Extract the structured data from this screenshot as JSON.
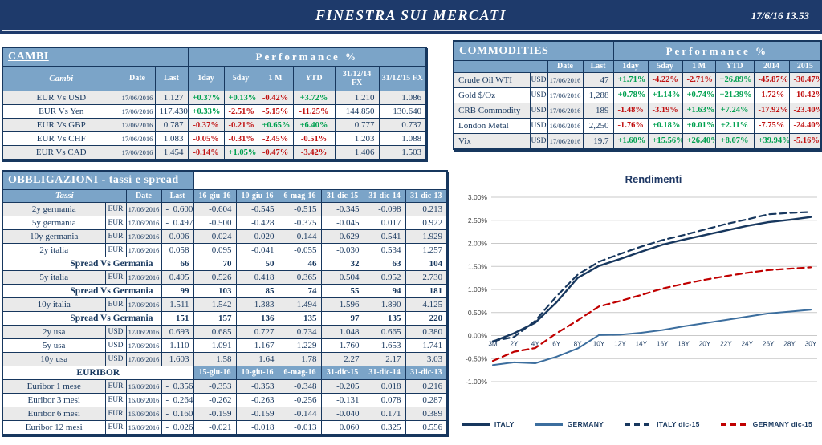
{
  "header": {
    "title": "FINESTRA SUI MERCATI",
    "datetime": "17/6/16 13.53"
  },
  "colors": {
    "navy": "#17375E",
    "header_bar": "#1E3A6B",
    "panel_blue": "#7BA4C8",
    "positive": "#00A050",
    "negative": "#C01010",
    "row_shade": "#EAEAEA",
    "grid": "#C9C9C9",
    "italy_line": "#17375E",
    "germany_line": "#3C6E9E",
    "germany_dec_line": "#C00000"
  },
  "cambi": {
    "title": "CAMBI",
    "perf_header": "Performance %",
    "columns": [
      "Cambi",
      "Date",
      "Last",
      "1day",
      "5day",
      "1 M",
      "YTD",
      "31/12/14 FX",
      "31/12/15  FX"
    ],
    "rows": [
      {
        "name": "EUR Vs USD",
        "date": "17/06/2016",
        "last": "1.127",
        "perf": [
          "+0.37%",
          "+0.13%",
          "-0.42%",
          "+3.72%"
        ],
        "fx14": "1.210",
        "fx15": "1.086"
      },
      {
        "name": "EUR Vs Yen",
        "date": "17/06/2016",
        "last": "117.430",
        "perf": [
          "+0.33%",
          "-2.51%",
          "-5.15%",
          "-11.25%"
        ],
        "fx14": "144.850",
        "fx15": "130.640"
      },
      {
        "name": "EUR Vs GBP",
        "date": "17/06/2016",
        "last": "0.787",
        "perf": [
          "-0.37%",
          "-0.21%",
          "+0.65%",
          "+6.40%"
        ],
        "fx14": "0.777",
        "fx15": "0.737"
      },
      {
        "name": "EUR Vs CHF",
        "date": "17/06/2016",
        "last": "1.083",
        "perf": [
          "-0.05%",
          "-0.31%",
          "-2.45%",
          "-0.51%"
        ],
        "fx14": "1.203",
        "fx15": "1.088"
      },
      {
        "name": "EUR Vs CAD",
        "date": "17/06/2016",
        "last": "1.454",
        "perf": [
          "-0.14%",
          "+1.05%",
          "-0.47%",
          "-3.42%"
        ],
        "fx14": "1.406",
        "fx15": "1.503"
      }
    ]
  },
  "commodities": {
    "title": "COMMODITIES",
    "perf_header": "Performance %",
    "columns": [
      "",
      "Date",
      "Last",
      "1day",
      "5day",
      "1 M",
      "YTD",
      "2014",
      "2015"
    ],
    "rows": [
      {
        "name": "Crude Oil WTI",
        "ccy": "USD",
        "date": "17/06/2016",
        "last": "47",
        "perf": [
          "+1.71%",
          "-4.22%",
          "-2.71%",
          "+26.89%",
          "-45.87%",
          "-30.47%"
        ]
      },
      {
        "name": "Gold $/Oz",
        "ccy": "USD",
        "date": "17/06/2016",
        "last": "1,288",
        "perf": [
          "+0.78%",
          "+1.14%",
          "+0.74%",
          "+21.39%",
          "-1.72%",
          "-10.42%"
        ]
      },
      {
        "name": "CRB Commodity",
        "ccy": "USD",
        "date": "17/06/2016",
        "last": "189",
        "perf": [
          "-1.48%",
          "-3.19%",
          "+1.63%",
          "+7.24%",
          "-17.92%",
          "-23.40%"
        ]
      },
      {
        "name": "London Metal",
        "ccy": "USD",
        "date": "16/06/2016",
        "last": "2,250",
        "perf": [
          "-1.76%",
          "+0.18%",
          "+0.01%",
          "+2.11%",
          "-7.75%",
          "-24.40%"
        ]
      },
      {
        "name": "Vix",
        "ccy": "USD",
        "date": "17/06/2016",
        "last": "19.7",
        "perf": [
          "+1.60%",
          "+15.56%",
          "+26.40%",
          "+8.07%",
          "+39.94%",
          "-5.16%"
        ]
      }
    ]
  },
  "bonds": {
    "title": "OBBLIGAZIONI - tassi e spread",
    "columns": [
      "Tassi",
      "Date",
      "Last",
      "16-giu-16",
      "10-giu-16",
      "6-mag-16",
      "31-dic-15",
      "31-dic-14",
      "31-dic-13"
    ],
    "rows": [
      {
        "type": "data",
        "name": "2y germania",
        "ccy": "EUR",
        "date": "17/06/2016",
        "last": "-  0.600",
        "values": [
          "-0.604",
          "-0.545",
          "-0.515",
          "-0.345",
          "-0.098",
          "0.213"
        ]
      },
      {
        "type": "data",
        "name": "5y germania",
        "ccy": "EUR",
        "date": "17/06/2016",
        "last": "-  0.497",
        "values": [
          "-0.500",
          "-0.428",
          "-0.375",
          "-0.045",
          "0.017",
          "0.922"
        ]
      },
      {
        "type": "data",
        "name": "10y germania",
        "ccy": "EUR",
        "date": "17/06/2016",
        "last": "0.006",
        "values": [
          "-0.024",
          "0.020",
          "0.144",
          "0.629",
          "0.541",
          "1.929"
        ]
      },
      {
        "type": "data",
        "name": "2y italia",
        "ccy": "EUR",
        "date": "17/06/2016",
        "last": "0.058",
        "values": [
          "0.095",
          "-0.041",
          "-0.055",
          "-0.030",
          "0.534",
          "1.257"
        ]
      },
      {
        "type": "spread",
        "label": "Spread Vs Germania",
        "last": "66",
        "values": [
          "70",
          "50",
          "46",
          "32",
          "63",
          "104"
        ]
      },
      {
        "type": "data",
        "name": "5y italia",
        "ccy": "EUR",
        "date": "17/06/2016",
        "last": "0.495",
        "values": [
          "0.526",
          "0.418",
          "0.365",
          "0.504",
          "0.952",
          "2.730"
        ]
      },
      {
        "type": "spread",
        "label": "Spread Vs Germania",
        "last": "99",
        "values": [
          "103",
          "85",
          "74",
          "55",
          "94",
          "181"
        ]
      },
      {
        "type": "data",
        "name": "10y italia",
        "ccy": "EUR",
        "date": "17/06/2016",
        "last": "1.511",
        "values": [
          "1.542",
          "1.383",
          "1.494",
          "1.596",
          "1.890",
          "4.125"
        ]
      },
      {
        "type": "spread",
        "label": "Spread Vs Germania",
        "last": "151",
        "values": [
          "157",
          "136",
          "135",
          "97",
          "135",
          "220"
        ]
      },
      {
        "type": "data",
        "name": "2y usa",
        "ccy": "USD",
        "date": "17/06/2016",
        "last": "0.693",
        "values": [
          "0.685",
          "0.727",
          "0.734",
          "1.048",
          "0.665",
          "0.380"
        ]
      },
      {
        "type": "data",
        "name": "5y usa",
        "ccy": "USD",
        "date": "17/06/2016",
        "last": "1.110",
        "values": [
          "1.091",
          "1.167",
          "1.229",
          "1.760",
          "1.653",
          "1.741"
        ]
      },
      {
        "type": "data",
        "name": "10y usa",
        "ccy": "USD",
        "date": "17/06/2016",
        "last": "1.603",
        "values": [
          "1.58",
          "1.64",
          "1.78",
          "2.27",
          "2.17",
          "3.03"
        ]
      },
      {
        "type": "subheader",
        "label": "EURIBOR",
        "columns": [
          "15-giu-16",
          "10-giu-16",
          "6-mag-16",
          "31-dic-15",
          "31-dic-14",
          "31-dic-13"
        ]
      },
      {
        "type": "data",
        "name": "Euribor 1 mese",
        "ccy": "EUR",
        "date": "16/06/2016",
        "last": "-  0.356",
        "values": [
          "-0.353",
          "-0.353",
          "-0.348",
          "-0.205",
          "0.018",
          "0.216"
        ]
      },
      {
        "type": "data",
        "name": "Euribor 3 mesi",
        "ccy": "EUR",
        "date": "16/06/2016",
        "last": "-  0.264",
        "values": [
          "-0.262",
          "-0.263",
          "-0.256",
          "-0.131",
          "0.078",
          "0.287"
        ]
      },
      {
        "type": "data",
        "name": "Euribor 6 mesi",
        "ccy": "EUR",
        "date": "16/06/2016",
        "last": "-  0.160",
        "values": [
          "-0.159",
          "-0.159",
          "-0.144",
          "-0.040",
          "0.171",
          "0.389"
        ]
      },
      {
        "type": "data",
        "name": "Euribor 12 mesi",
        "ccy": "EUR",
        "date": "16/06/2016",
        "last": "-  0.026",
        "values": [
          "-0.021",
          "-0.018",
          "-0.013",
          "0.060",
          "0.325",
          "0.556"
        ]
      }
    ]
  },
  "chart_data": {
    "type": "line",
    "title": "Rendimenti",
    "x": [
      "3M",
      "2Y",
      "4Y",
      "6Y",
      "8Y",
      "10Y",
      "12Y",
      "14Y",
      "16Y",
      "18Y",
      "20Y",
      "22Y",
      "24Y",
      "26Y",
      "28Y",
      "30Y"
    ],
    "ylim": [
      -1.0,
      3.0
    ],
    "ytick_labels": [
      "3.00%",
      "2.50%",
      "2.00%",
      "1.50%",
      "1.00%",
      "0.50%",
      "0.00%",
      "-0.50%",
      "-1.00%"
    ],
    "ytick_values": [
      3.0,
      2.5,
      2.0,
      1.5,
      1.0,
      0.5,
      0.0,
      -0.5,
      -1.0
    ],
    "grid": true,
    "legend_position": "bottom",
    "series": [
      {
        "name": "ITALY",
        "color": "#17375E",
        "dash": false,
        "width": 2.4,
        "values": [
          -0.13,
          0.05,
          0.28,
          0.72,
          1.25,
          1.51,
          1.66,
          1.82,
          1.97,
          2.08,
          2.18,
          2.28,
          2.38,
          2.46,
          2.51,
          2.57
        ]
      },
      {
        "name": "GERMANY",
        "color": "#3C6E9E",
        "dash": false,
        "width": 2.0,
        "values": [
          -0.64,
          -0.58,
          -0.6,
          -0.46,
          -0.28,
          0.01,
          0.02,
          0.06,
          0.12,
          0.2,
          0.27,
          0.34,
          0.41,
          0.48,
          0.52,
          0.56
        ]
      },
      {
        "name": "ITALY dic-15",
        "color": "#17375E",
        "dash": true,
        "width": 2.2,
        "values": [
          -0.12,
          -0.03,
          0.32,
          0.85,
          1.32,
          1.6,
          1.77,
          1.93,
          2.07,
          2.18,
          2.3,
          2.42,
          2.52,
          2.63,
          2.66,
          2.68
        ]
      },
      {
        "name": "GERMANY dic-15",
        "color": "#C00000",
        "dash": true,
        "width": 2.2,
        "values": [
          -0.55,
          -0.35,
          -0.27,
          0.05,
          0.33,
          0.63,
          0.75,
          0.88,
          1.02,
          1.12,
          1.21,
          1.29,
          1.36,
          1.42,
          1.45,
          1.48
        ]
      }
    ]
  }
}
